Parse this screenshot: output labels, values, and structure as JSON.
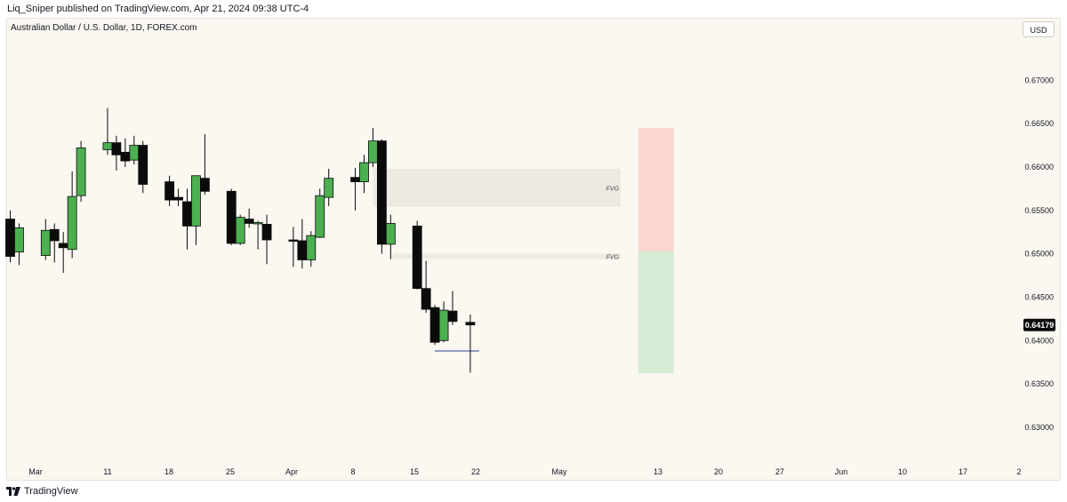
{
  "header": {
    "publisher_line": "Liq_Sniper published on TradingView.com, Apr 21, 2024 09:38 UTC-4"
  },
  "symbol": {
    "title": "Australian Dollar / U.S. Dollar, 1D, FOREX.com"
  },
  "toolbar": {
    "currency": "USD"
  },
  "footer": {
    "brand": "TradingView",
    "logo_icon": "tradingview-logo-icon"
  },
  "colors": {
    "background": "#fbf7f1",
    "bull": "#4caf50",
    "bear": "#0b0b0b",
    "fvg_zone": "#ede9e3",
    "stop_zone": "#f9d6d0",
    "target_zone": "#d6ebd3",
    "sweep_line": "#2a3f8f",
    "price_label_bg": "#0b0b0b"
  },
  "chart_data": {
    "type": "candlestick",
    "x_tick_labels": [
      "Mar",
      "11",
      "18",
      "25",
      "Apr",
      "8",
      "15",
      "22",
      "May",
      "13",
      "20",
      "27",
      "Jun",
      "10",
      "17",
      "2"
    ],
    "y_axis": {
      "ylim": [
        0.626,
        0.6772
      ],
      "ticks": [
        "0.67000",
        "0.66500",
        "0.66000",
        "0.65500",
        "0.65000",
        "0.64500",
        "0.64000",
        "0.63500",
        "0.63000"
      ],
      "last_price": "0.64179"
    },
    "candles": [
      {
        "date": "2024-02-29",
        "o": 0.654,
        "h": 0.655,
        "l": 0.649,
        "c": 0.6497
      },
      {
        "date": "2024-03-01",
        "o": 0.6502,
        "h": 0.6535,
        "l": 0.6487,
        "c": 0.653
      },
      {
        "date": "2024-03-04",
        "o": 0.6498,
        "h": 0.654,
        "l": 0.6493,
        "c": 0.6527
      },
      {
        "date": "2024-03-05",
        "o": 0.6528,
        "h": 0.6535,
        "l": 0.649,
        "c": 0.6515
      },
      {
        "date": "2024-03-06",
        "o": 0.6512,
        "h": 0.6525,
        "l": 0.6478,
        "c": 0.6507
      },
      {
        "date": "2024-03-07",
        "o": 0.6505,
        "h": 0.6595,
        "l": 0.6495,
        "c": 0.6566
      },
      {
        "date": "2024-03-08",
        "o": 0.6567,
        "h": 0.663,
        "l": 0.656,
        "c": 0.6622
      },
      {
        "date": "2024-03-11",
        "o": 0.662,
        "h": 0.6668,
        "l": 0.6614,
        "c": 0.6628
      },
      {
        "date": "2024-03-12",
        "o": 0.6628,
        "h": 0.6636,
        "l": 0.6596,
        "c": 0.6614
      },
      {
        "date": "2024-03-13",
        "o": 0.6617,
        "h": 0.6633,
        "l": 0.66,
        "c": 0.6607
      },
      {
        "date": "2024-03-14",
        "o": 0.6608,
        "h": 0.6636,
        "l": 0.6603,
        "c": 0.6625
      },
      {
        "date": "2024-03-15",
        "o": 0.6625,
        "h": 0.663,
        "l": 0.657,
        "c": 0.658
      },
      {
        "date": "2024-03-18",
        "o": 0.6583,
        "h": 0.659,
        "l": 0.6555,
        "c": 0.6562
      },
      {
        "date": "2024-03-19",
        "o": 0.6565,
        "h": 0.6575,
        "l": 0.6555,
        "c": 0.6562
      },
      {
        "date": "2024-03-20",
        "o": 0.656,
        "h": 0.6575,
        "l": 0.6505,
        "c": 0.6532
      },
      {
        "date": "2024-03-21",
        "o": 0.6532,
        "h": 0.659,
        "l": 0.651,
        "c": 0.659
      },
      {
        "date": "2024-03-22",
        "o": 0.6587,
        "h": 0.6638,
        "l": 0.6568,
        "c": 0.6572
      },
      {
        "date": "2024-03-25",
        "o": 0.6572,
        "h": 0.6575,
        "l": 0.651,
        "c": 0.6512
      },
      {
        "date": "2024-03-26",
        "o": 0.6512,
        "h": 0.6545,
        "l": 0.651,
        "c": 0.6542
      },
      {
        "date": "2024-03-27",
        "o": 0.654,
        "h": 0.6552,
        "l": 0.653,
        "c": 0.6535
      },
      {
        "date": "2024-03-28",
        "o": 0.6535,
        "h": 0.6538,
        "l": 0.6505,
        "c": 0.6536
      },
      {
        "date": "2024-03-29",
        "o": 0.6534,
        "h": 0.6545,
        "l": 0.6488,
        "c": 0.6516
      },
      {
        "date": "2024-04-01",
        "o": 0.6516,
        "h": 0.6531,
        "l": 0.6485,
        "c": 0.6515
      },
      {
        "date": "2024-04-02",
        "o": 0.6515,
        "h": 0.654,
        "l": 0.6483,
        "c": 0.6493
      },
      {
        "date": "2024-04-03",
        "o": 0.6493,
        "h": 0.6526,
        "l": 0.6485,
        "c": 0.6521
      },
      {
        "date": "2024-04-04",
        "o": 0.6519,
        "h": 0.6575,
        "l": 0.6518,
        "c": 0.6567
      },
      {
        "date": "2024-04-05",
        "o": 0.6565,
        "h": 0.6598,
        "l": 0.6555,
        "c": 0.6587
      },
      {
        "date": "2024-04-08",
        "o": 0.6588,
        "h": 0.6599,
        "l": 0.655,
        "c": 0.6583
      },
      {
        "date": "2024-04-09",
        "o": 0.6583,
        "h": 0.6614,
        "l": 0.657,
        "c": 0.6605
      },
      {
        "date": "2024-04-10",
        "o": 0.6605,
        "h": 0.6645,
        "l": 0.66,
        "c": 0.663
      },
      {
        "date": "2024-04-11",
        "o": 0.663,
        "h": 0.6632,
        "l": 0.65,
        "c": 0.6511
      },
      {
        "date": "2024-04-12",
        "o": 0.6511,
        "h": 0.6545,
        "l": 0.6494,
        "c": 0.6535
      },
      {
        "date": "2024-04-15",
        "o": 0.6532,
        "h": 0.6538,
        "l": 0.6459,
        "c": 0.646
      },
      {
        "date": "2024-04-16",
        "o": 0.646,
        "h": 0.6492,
        "l": 0.6432,
        "c": 0.6436
      },
      {
        "date": "2024-04-17",
        "o": 0.6438,
        "h": 0.6441,
        "l": 0.6395,
        "c": 0.6398
      },
      {
        "date": "2024-04-18",
        "o": 0.64,
        "h": 0.6445,
        "l": 0.6398,
        "c": 0.6435
      },
      {
        "date": "2024-04-19",
        "o": 0.6434,
        "h": 0.6457,
        "l": 0.6418,
        "c": 0.6422
      },
      {
        "date": "2024-04-21",
        "o": 0.6421,
        "h": 0.643,
        "l": 0.6363,
        "c": 0.6418
      }
    ],
    "annotations": {
      "fvg_zones": [
        {
          "label": "FVG",
          "top": 0.6598,
          "bottom": 0.6554,
          "start": "2024-04-10",
          "end": "2024-05-08"
        },
        {
          "label": "FVG",
          "top": 0.65,
          "bottom": 0.6494,
          "start": "2024-04-12",
          "end": "2024-05-08"
        }
      ],
      "position": {
        "start": "2024-05-10",
        "end": "2024-05-14",
        "stop_top": 0.6645,
        "entry": 0.6503,
        "target": 0.6362
      },
      "sweep_line": {
        "start": "2024-04-17",
        "end": "2024-04-22",
        "price": 0.6388
      }
    }
  }
}
